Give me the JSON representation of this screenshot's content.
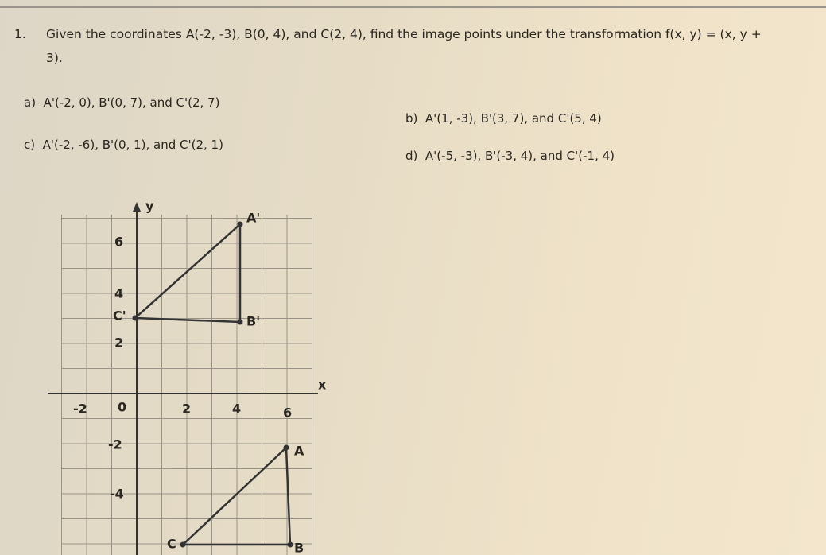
{
  "question": {
    "number": "1.",
    "text": "Given the coordinates A(-2, -3), B(0, 4), and C(2, 4), find the image points under the transformation f(x, y) = (x, y + 3)."
  },
  "options": [
    {
      "letter": "a)",
      "text": "A'(-2, 0), B'(0, 7), and C'(2, 7)"
    },
    {
      "letter": "b)",
      "text": "A'(1, -3), B'(3, 7), and C'(5, 4)"
    },
    {
      "letter": "c)",
      "text": "A'(-2, -6), B'(0, 1), and C'(2, 1)"
    },
    {
      "letter": "d)",
      "text": "A'(-5, -3), B'(-3, 4), and C'(-1, 4)"
    }
  ],
  "graph": {
    "x_label": "x",
    "y_label": "y",
    "y_ticks": [
      "6",
      "4",
      "2",
      "-2",
      "-4"
    ],
    "x_ticks": [
      "-2",
      "0",
      "2",
      "4",
      "6"
    ],
    "points": [
      "A'",
      "B'",
      "C'",
      "A",
      "B",
      "C"
    ]
  }
}
